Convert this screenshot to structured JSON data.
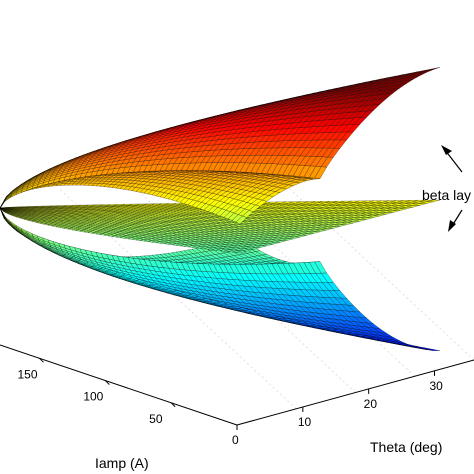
{
  "chart_data": {
    "type": "surface3d",
    "x_axis": {
      "label": "Iamp (A)",
      "ticks": [
        50,
        100,
        150
      ]
    },
    "y_axis": {
      "label": "Theta (deg)",
      "ticks": [
        0,
        10,
        20,
        30
      ]
    },
    "annotation": {
      "text": "beta lay"
    },
    "grid": true,
    "colormap": "jet",
    "surfaces": [
      {
        "level": "high",
        "peaks": 3
      },
      {
        "level": "mid",
        "peaks": 0
      },
      {
        "level": "low",
        "peaks": 3
      }
    ]
  }
}
